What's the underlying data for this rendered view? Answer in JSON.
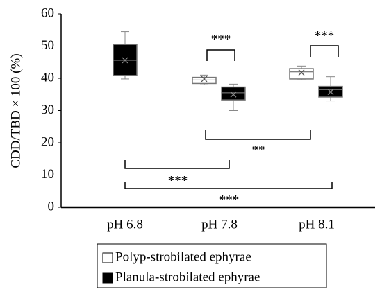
{
  "chart_data": {
    "type": "box",
    "y_label": "CDD/TBD × 100 (%)",
    "categories": [
      "pH 6.8",
      "pH 7.8",
      "pH 8.1"
    ],
    "series": [
      {
        "name": "Polyp-strobilated ephyrae",
        "color": "#ffffff",
        "stats": [
          null,
          {
            "min": 38,
            "q1": 38.4,
            "median": 39.5,
            "q3": 40.3,
            "max": 41,
            "mean": 39.8
          },
          {
            "min": 39.5,
            "q1": 39.8,
            "median": 42,
            "q3": 43,
            "max": 43.8,
            "mean": 41.8
          }
        ]
      },
      {
        "name": "Planula-strobilated ephyrae",
        "color": "#000000",
        "stats": [
          {
            "min": 39.8,
            "q1": 40.9,
            "median": 45.6,
            "q3": 50.5,
            "max": 54.5,
            "mean": 45.6
          },
          {
            "min": 30,
            "q1": 33.3,
            "median": 35.5,
            "q3": 37.3,
            "max": 38.2,
            "mean": 35
          },
          {
            "min": 33,
            "q1": 34.2,
            "median": 36.5,
            "q3": 37.5,
            "max": 40.5,
            "mean": 35.8
          }
        ]
      }
    ],
    "ylim": [
      0,
      60
    ],
    "yticks": [
      0,
      10,
      20,
      30,
      40,
      50,
      60
    ],
    "annotations": [
      "***",
      "***",
      "**",
      "***",
      "***"
    ]
  }
}
